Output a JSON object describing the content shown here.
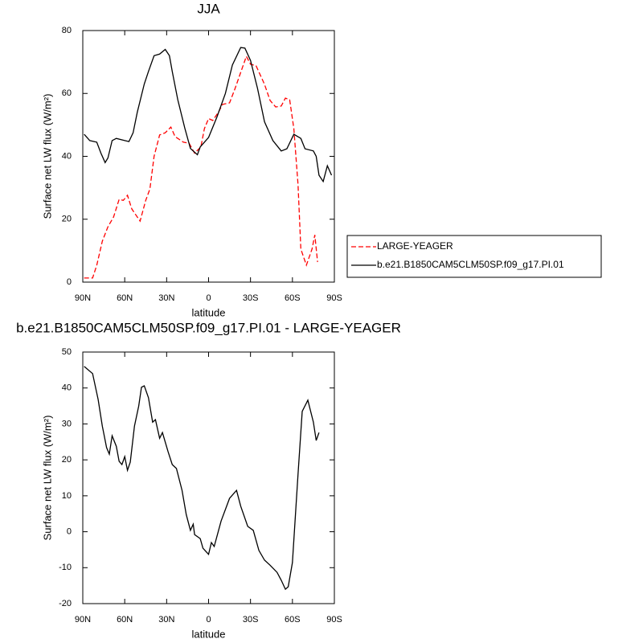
{
  "chart_data": [
    {
      "type": "line",
      "title": "JJA",
      "xlabel": "latitude",
      "ylabel": "Surface net LW flux (W/m²)",
      "xlim": [
        90,
        -90
      ],
      "ylim": [
        0,
        80
      ],
      "xticks": [
        {
          "value": 90,
          "label": "90N"
        },
        {
          "value": 60,
          "label": "60N"
        },
        {
          "value": 30,
          "label": "30N"
        },
        0,
        {
          "value": -30,
          "label": "30S"
        },
        {
          "value": -60,
          "label": "60S"
        },
        {
          "value": -90,
          "label": "90S"
        }
      ],
      "yticks": [
        0,
        20,
        40,
        60,
        80
      ],
      "legend": "outside-right",
      "series": [
        {
          "name": "LARGE-YEAGER",
          "color": "#ff0000",
          "line_style": "dashed",
          "x": [
            89,
            83,
            80,
            76,
            72,
            68,
            64,
            61,
            58,
            55,
            51,
            49,
            45,
            42,
            39,
            35,
            31,
            27,
            24,
            18,
            14,
            10,
            5.5,
            3,
            0,
            -3,
            -7,
            -10,
            -15,
            -19,
            -23,
            -27,
            -30,
            -34,
            -40,
            -44,
            -48,
            -52,
            -55,
            -58,
            -61,
            -64,
            -66,
            -70,
            -74,
            -76,
            -78
          ],
          "values": [
            1.3,
            1.3,
            5.4,
            13,
            17.6,
            20.7,
            26.3,
            26,
            27.6,
            23.3,
            20.7,
            19.4,
            26,
            29.6,
            40,
            46.8,
            47.5,
            49.3,
            46.3,
            44.5,
            44.2,
            41,
            43,
            48.8,
            52,
            51.4,
            54,
            56.5,
            57,
            61.6,
            66.7,
            71.8,
            69.3,
            68.8,
            62.9,
            57.8,
            55.7,
            56,
            58.5,
            58,
            48.8,
            31,
            10.5,
            5.4,
            10.5,
            15,
            6.4
          ]
        },
        {
          "name": "b.e21.B1850CAM5CLM50SP.f09_g17.PI.01",
          "color": "#000000",
          "line_style": "solid",
          "x": [
            89,
            85,
            80,
            77,
            74,
            72,
            69,
            66,
            60,
            57,
            54,
            51,
            46,
            43,
            39,
            35,
            31,
            28,
            26,
            22,
            17,
            13,
            8,
            6,
            0,
            -6,
            -12,
            -17,
            -23,
            -26,
            -30,
            -35,
            -40,
            -46,
            -52,
            -56,
            -61,
            -66,
            -69,
            -75,
            -77,
            -79,
            -82,
            -85,
            -88
          ],
          "values": [
            47,
            45,
            44.5,
            41,
            38,
            39.5,
            45,
            45.7,
            45,
            44.7,
            47.5,
            54,
            63,
            67,
            72,
            72.5,
            74,
            72,
            67,
            58,
            49,
            42.5,
            40.5,
            43,
            46,
            52.5,
            60,
            69,
            74.6,
            74.4,
            70.5,
            61.6,
            51,
            45,
            41.7,
            42.4,
            47,
            45.7,
            42.4,
            41.7,
            40,
            34,
            32,
            37,
            34
          ]
        }
      ]
    },
    {
      "type": "line",
      "title": "b.e21.B1850CAM5CLM50SP.f09_g17.PI.01 - LARGE-YEAGER",
      "xlabel": "latitude",
      "ylabel": "Surface net LW flux (W/m²)",
      "xlim": [
        90,
        -90
      ],
      "ylim": [
        -20,
        50
      ],
      "xticks": [
        {
          "value": 90,
          "label": "90N"
        },
        {
          "value": 60,
          "label": "60N"
        },
        {
          "value": 30,
          "label": "30N"
        },
        0,
        {
          "value": -30,
          "label": "30S"
        },
        {
          "value": -60,
          "label": "60S"
        },
        {
          "value": -90,
          "label": "90S"
        }
      ],
      "yticks": [
        -20,
        -10,
        0,
        10,
        20,
        30,
        40,
        50
      ],
      "series": [
        {
          "color": "#000000",
          "line_style": "solid",
          "x": [
            89,
            83,
            79,
            76,
            73,
            71,
            69,
            66,
            64,
            62,
            60,
            58,
            56,
            53,
            50,
            48,
            46,
            43,
            40,
            38,
            35,
            33,
            29,
            26,
            23,
            19,
            16,
            13,
            11,
            10,
            6,
            4,
            0,
            -2,
            -4,
            -9,
            -15,
            -20,
            -23,
            -28,
            -32,
            -36,
            -40,
            -44,
            -49,
            -52,
            -55,
            -57,
            -60,
            -64,
            -67,
            -71,
            -75,
            -77,
            -79
          ],
          "values": [
            46,
            44,
            36.8,
            29.4,
            23.4,
            21.6,
            26.7,
            23.8,
            19.6,
            18.7,
            20.9,
            17.1,
            19.4,
            29.4,
            35,
            40.2,
            40.6,
            37.3,
            30.5,
            31.2,
            26,
            27.6,
            22.3,
            18.7,
            17.6,
            11.5,
            4.8,
            0.4,
            2.1,
            -0.8,
            -1.9,
            -4.6,
            -6.3,
            -3,
            -4.1,
            3,
            9.3,
            11.5,
            7.1,
            1.5,
            0.4,
            -5.2,
            -7.9,
            -9.3,
            -11.3,
            -13.5,
            -16,
            -15.3,
            -8.6,
            16,
            33.5,
            36.6,
            30.5,
            25.4,
            27.6
          ]
        }
      ]
    }
  ]
}
